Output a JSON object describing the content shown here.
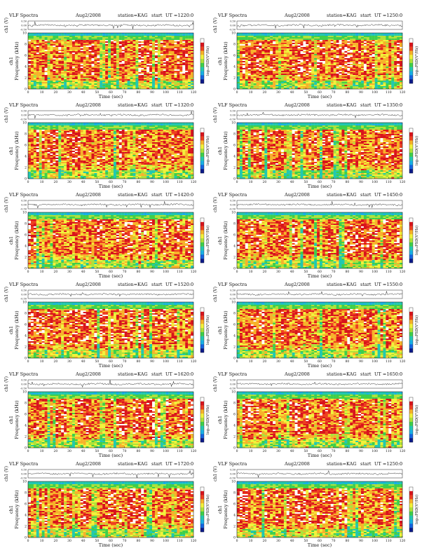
{
  "chart_data": {
    "type": "heatmap",
    "grid": {
      "rows": 6,
      "cols": 2
    },
    "common": {
      "title_left": "VLF Spectra",
      "date": "Aug2/2008",
      "station": "station=KAG",
      "start_label": "start",
      "ut_prefix": "UT =",
      "waveform_ylabel": "ch1 (V)",
      "waveform_ticks": [
        "0.50",
        "0.00",
        "-0.50"
      ],
      "waveform_ylim": [
        -0.5,
        0.5
      ],
      "spectrogram_ylabel": "Frequency (kHz)",
      "channel_label": "ch1",
      "ylim": [
        0,
        10
      ],
      "yticks": [
        0,
        2,
        4,
        6,
        8,
        10
      ],
      "xlim": [
        0,
        120
      ],
      "xticks": [
        0,
        10,
        20,
        30,
        40,
        50,
        60,
        70,
        80,
        90,
        100,
        110,
        120
      ],
      "xlabel": "Time (sec)",
      "colorbar_label": "log₁₀PSD(V²/Hz)",
      "colorbar_colors": [
        "#0b1a8a",
        "#1565e0",
        "#19b0e6",
        "#22c8b0",
        "#3fcf4a",
        "#aee23a",
        "#f2f23a",
        "#f7b22a",
        "#ee4020",
        "#d8141c",
        "#ffffff"
      ]
    },
    "panels": [
      {
        "ut": "1220:0",
        "seed": 11
      },
      {
        "ut": "1250:0",
        "seed": 23
      },
      {
        "ut": "1320:0",
        "seed": 37
      },
      {
        "ut": "1350:0",
        "seed": 41
      },
      {
        "ut": "1420:0",
        "seed": 53
      },
      {
        "ut": "1450:0",
        "seed": 67
      },
      {
        "ut": "1520:0",
        "seed": 71
      },
      {
        "ut": "1550:0",
        "seed": 83
      },
      {
        "ut": "1620:0",
        "seed": 97
      },
      {
        "ut": "1650:0",
        "seed": 101
      },
      {
        "ut": "1720:0",
        "seed": 113
      },
      {
        "ut": "1250:0",
        "seed": 127
      }
    ]
  }
}
